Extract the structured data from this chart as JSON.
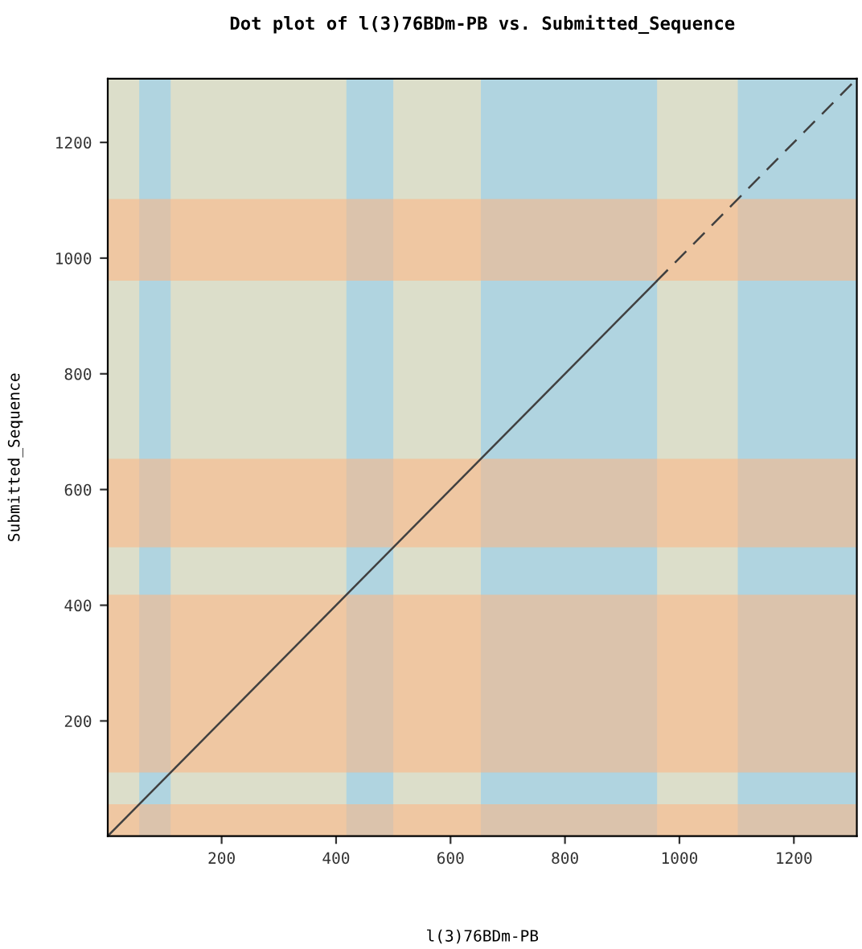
{
  "chart_data": {
    "type": "line",
    "title": "Dot plot of l(3)76BDm-PB vs. Submitted_Sequence",
    "xlabel": "l(3)76BDm-PB",
    "ylabel": "Submitted_Sequence",
    "xlim": [
      1,
      1310
    ],
    "ylim": [
      1,
      1310
    ],
    "xticks": [
      200,
      400,
      600,
      800,
      1000,
      1200
    ],
    "yticks": [
      200,
      400,
      600,
      800,
      1000,
      1200
    ],
    "grid": false,
    "series": [
      {
        "color": "#404040",
        "line_style": "solid",
        "x": [
          1,
          960
        ],
        "values": [
          1,
          960
        ]
      },
      {
        "color": "#404040",
        "line_style": "dashed",
        "x": [
          960,
          1310
        ],
        "values": [
          960,
          1310
        ]
      }
    ],
    "bands": [
      {
        "axis": "x",
        "from": 56,
        "to": 111,
        "color": "#b0d4e0"
      },
      {
        "axis": "x",
        "from": 418,
        "to": 500,
        "color": "#b0d4e0"
      },
      {
        "axis": "x",
        "from": 653,
        "to": 961,
        "color": "#b0d4e0"
      },
      {
        "axis": "x",
        "from": 1102,
        "to": 1310,
        "color": "#b0d4e0"
      },
      {
        "axis": "y",
        "from": 1,
        "to": 56,
        "color": "#ffb482"
      },
      {
        "axis": "y",
        "from": 111,
        "to": 418,
        "color": "#ffb482"
      },
      {
        "axis": "y",
        "from": 500,
        "to": 653,
        "color": "#ffb482"
      },
      {
        "axis": "y",
        "from": 961,
        "to": 1102,
        "color": "#ffb482"
      }
    ]
  }
}
